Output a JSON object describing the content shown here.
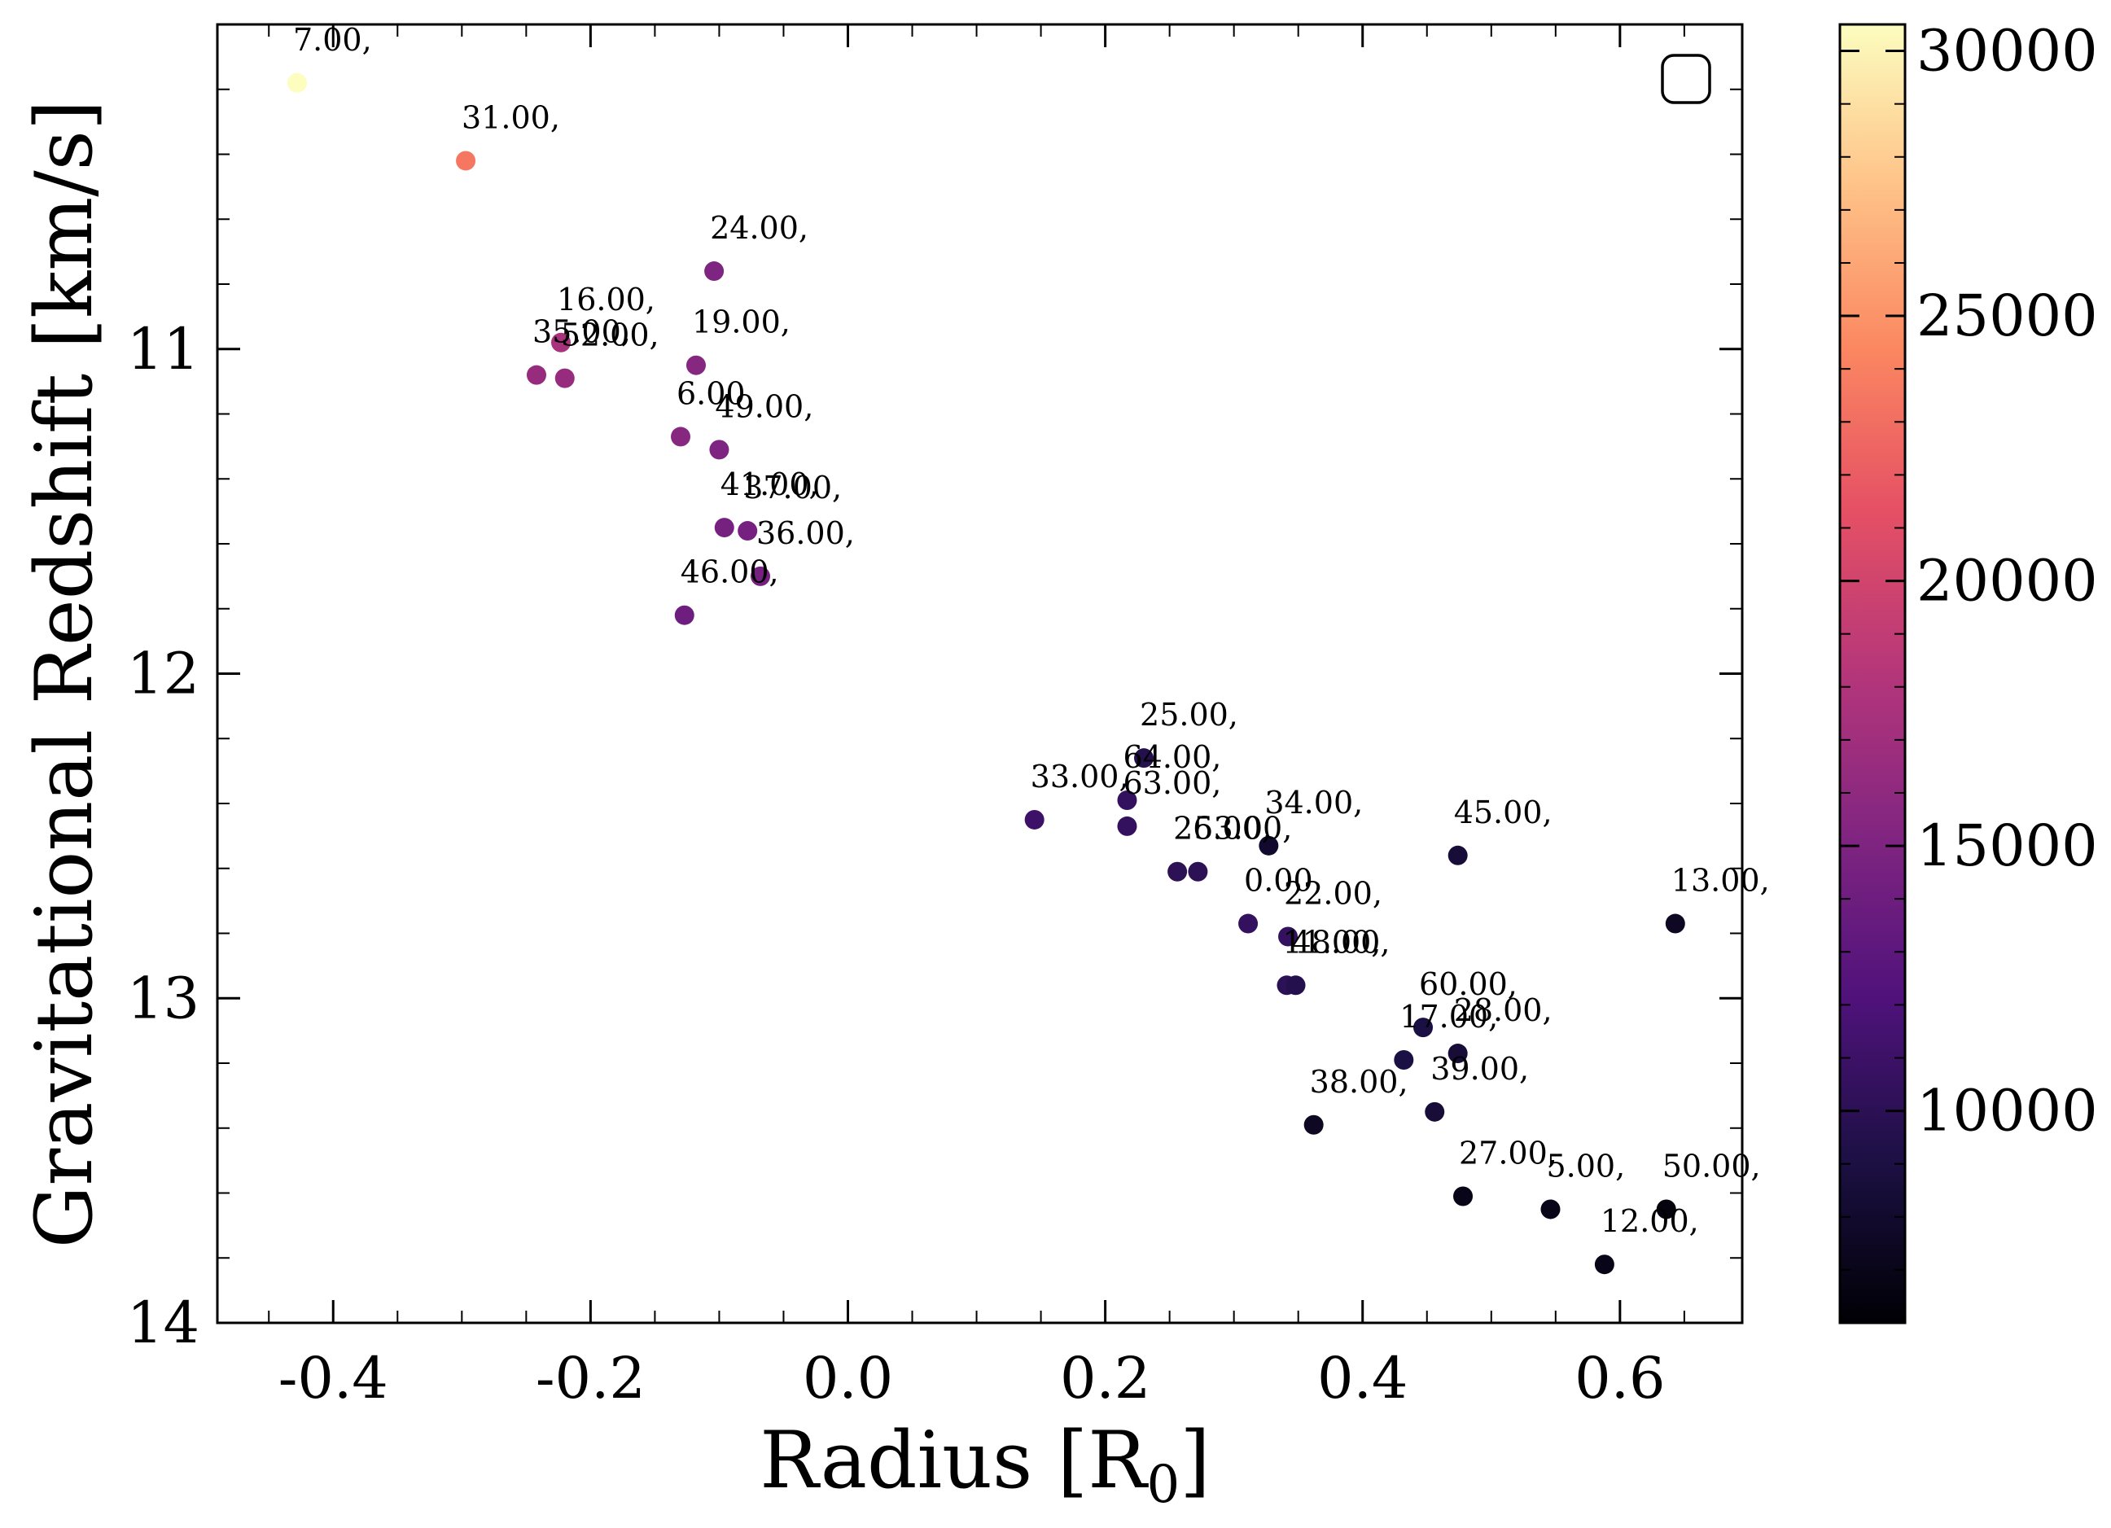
{
  "chart_data": {
    "type": "scatter",
    "xlabel": "Radius [R",
    "xlabel_sub": "0",
    "xlabel_end": "]",
    "ylabel": "Gravitational Redshift [km/s]",
    "xlim": [
      -0.49,
      0.695
    ],
    "ylim": [
      14.0,
      10.0
    ],
    "y_inverted": true,
    "x_ticks": [
      -0.4,
      -0.2,
      0.0,
      0.2,
      0.4,
      0.6
    ],
    "x_tick_labels": [
      "-0.4",
      "-0.2",
      "0.0",
      "0.2",
      "0.4",
      "0.6"
    ],
    "y_ticks": [
      11,
      12,
      13,
      14
    ],
    "y_tick_labels": [
      "11",
      "12",
      "13",
      "14"
    ],
    "legend": "empty box, top-right",
    "colormap": "magma",
    "colorbar": {
      "range": [
        6000,
        30500
      ],
      "ticks": [
        10000,
        15000,
        20000,
        25000,
        30000
      ],
      "tick_labels": [
        "10000",
        "15000",
        "20000",
        "25000",
        "30000"
      ]
    },
    "points": [
      {
        "label": "7.00,",
        "x": -0.428,
        "y": 10.18,
        "c": 30500
      },
      {
        "label": "31.00,",
        "x": -0.297,
        "y": 10.42,
        "c": 23500
      },
      {
        "label": "24.00,",
        "x": -0.104,
        "y": 10.76,
        "c": 15000
      },
      {
        "label": "16.00,",
        "x": -0.223,
        "y": 10.98,
        "c": 17500
      },
      {
        "label": "35.00,",
        "x": -0.242,
        "y": 11.08,
        "c": 16500
      },
      {
        "label": "52.00,",
        "x": -0.22,
        "y": 11.09,
        "c": 16500
      },
      {
        "label": "19.00,",
        "x": -0.118,
        "y": 11.05,
        "c": 15500
      },
      {
        "label": "6.00,",
        "x": -0.13,
        "y": 11.27,
        "c": 15500
      },
      {
        "label": "49.00,",
        "x": -0.1,
        "y": 11.31,
        "c": 15000
      },
      {
        "label": "41.00,",
        "x": -0.096,
        "y": 11.55,
        "c": 14500
      },
      {
        "label": "37.00,",
        "x": -0.078,
        "y": 11.56,
        "c": 14500
      },
      {
        "label": "36.00,",
        "x": -0.068,
        "y": 11.7,
        "c": 14500
      },
      {
        "label": "46.00,",
        "x": -0.127,
        "y": 11.82,
        "c": 14000
      },
      {
        "label": "25.00,",
        "x": 0.23,
        "y": 12.26,
        "c": 9500
      },
      {
        "label": "64.00,",
        "x": 0.217,
        "y": 12.39,
        "c": 10500
      },
      {
        "label": "33.00,",
        "x": 0.145,
        "y": 12.45,
        "c": 11000
      },
      {
        "label": "63.00,",
        "x": 0.217,
        "y": 12.47,
        "c": 10500
      },
      {
        "label": "34.00,",
        "x": 0.327,
        "y": 12.53,
        "c": 8000
      },
      {
        "label": "26.00,",
        "x": 0.256,
        "y": 12.61,
        "c": 10000
      },
      {
        "label": "53.00,",
        "x": 0.272,
        "y": 12.61,
        "c": 10000
      },
      {
        "label": "45.00,",
        "x": 0.474,
        "y": 12.56,
        "c": 8500
      },
      {
        "label": "0.00,",
        "x": 0.311,
        "y": 12.77,
        "c": 10500
      },
      {
        "label": "22.00,",
        "x": 0.342,
        "y": 12.81,
        "c": 10500
      },
      {
        "label": "13.00,",
        "x": 0.643,
        "y": 12.77,
        "c": 7500
      },
      {
        "label": "11.00,",
        "x": 0.341,
        "y": 12.96,
        "c": 10000
      },
      {
        "label": "48.00,",
        "x": 0.348,
        "y": 12.96,
        "c": 9500
      },
      {
        "label": "60.00,",
        "x": 0.447,
        "y": 13.09,
        "c": 9000
      },
      {
        "label": "17.00,",
        "x": 0.432,
        "y": 13.19,
        "c": 9000
      },
      {
        "label": "28.00,",
        "x": 0.474,
        "y": 13.17,
        "c": 8500
      },
      {
        "label": "39.00,",
        "x": 0.456,
        "y": 13.35,
        "c": 8500
      },
      {
        "label": "38.00,",
        "x": 0.362,
        "y": 13.39,
        "c": 7500
      },
      {
        "label": "27.00,",
        "x": 0.478,
        "y": 13.61,
        "c": 7000
      },
      {
        "label": "5.00,",
        "x": 0.546,
        "y": 13.65,
        "c": 7000
      },
      {
        "label": "50.00,",
        "x": 0.636,
        "y": 13.65,
        "c": 6500
      },
      {
        "label": "12.00,",
        "x": 0.588,
        "y": 13.82,
        "c": 7000
      }
    ]
  }
}
